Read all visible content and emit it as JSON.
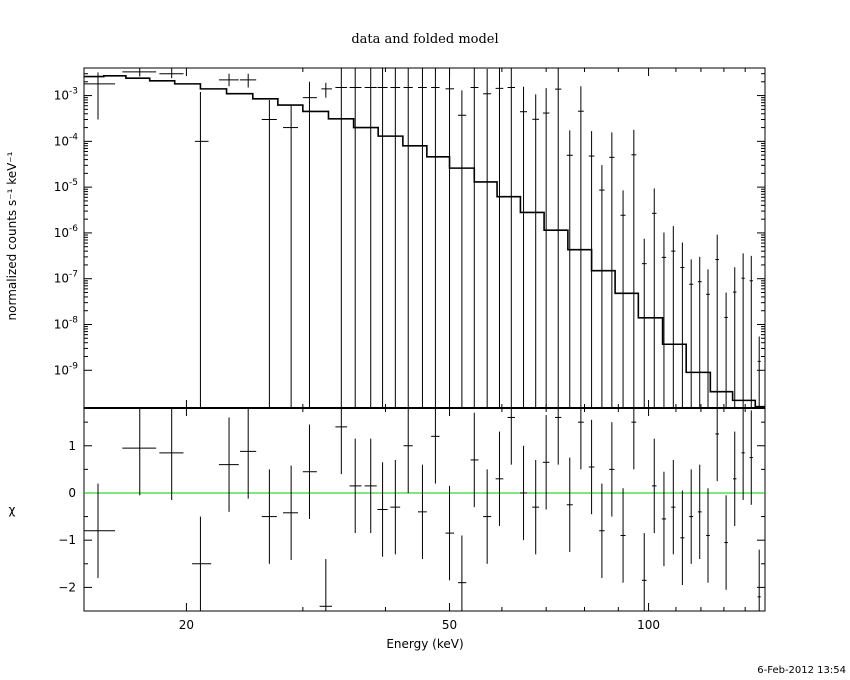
{
  "timestamp": "6-Feb-2012 13:54",
  "colors": {
    "frame": "#000000",
    "zero_line": "#00cc00",
    "background": "#ffffff"
  },
  "chart_data": [
    {
      "type": "line",
      "title": "data and folded model",
      "xlabel": "",
      "ylabel": "normalized counts s⁻¹ keV⁻¹",
      "xscale": "log",
      "yscale": "log",
      "xlim": [
        14,
        150
      ],
      "ylim": [
        1.5e-10,
        0.004
      ],
      "y_ticks": [
        {
          "value": 0.001,
          "mant": "10",
          "exp": "-3"
        },
        {
          "value": 0.0001,
          "mant": "10",
          "exp": "-4"
        },
        {
          "value": 1e-05,
          "mant": "10",
          "exp": "-5"
        },
        {
          "value": 1e-06,
          "mant": "10",
          "exp": "-6"
        },
        {
          "value": 1e-07,
          "mant": "10",
          "exp": "-7"
        },
        {
          "value": 1e-08,
          "mant": "10",
          "exp": "-8"
        },
        {
          "value": 1e-09,
          "mant": "10",
          "exp": "-9"
        }
      ],
      "series": [
        {
          "kind": "model_step",
          "x": [
            14.0,
            15.0,
            16.2,
            17.6,
            19.2,
            21.0,
            23.0,
            25.2,
            27.5,
            30.0,
            32.8,
            35.8,
            39.0,
            42.5,
            46.2,
            50.0,
            54.5,
            59.0,
            64.0,
            69.5,
            75.5,
            82.0,
            89.0,
            96.5,
            105.0,
            114.0,
            124.0,
            134.0,
            145.0,
            150.0
          ],
          "y": [
            0.0026,
            0.0027,
            0.0024,
            0.0021,
            0.0018,
            0.0014,
            0.0011,
            0.00085,
            0.00062,
            0.00045,
            0.00031,
            0.0002,
            0.00013,
            8e-05,
            4.6e-05,
            2.6e-05,
            1.3e-05,
            6.2e-06,
            2.8e-06,
            1.15e-06,
            4.3e-07,
            1.5e-07,
            4.8e-08,
            1.4e-08,
            3.7e-09,
            9e-10,
            3.4e-10,
            2.2e-10,
            1.6e-10,
            1.6e-10
          ]
        },
        {
          "kind": "data",
          "points": [
            {
              "x": 14.7,
              "xerr": [
                14.0,
                15.6
              ],
              "y": 0.0018,
              "ylo": 0.0003,
              "yhi": 0.0032
            },
            {
              "x": 17.0,
              "xerr": [
                16.0,
                18.0
              ],
              "y": 0.0033,
              "ylo": 0.0026,
              "yhi": 0.004
            },
            {
              "x": 19.0,
              "xerr": [
                18.2,
                19.8
              ],
              "y": 0.003,
              "ylo": 0.0024,
              "yhi": 0.004
            },
            {
              "x": 21.0,
              "xerr": [
                20.6,
                21.6
              ],
              "y": 0.0001,
              "ylo": null,
              "yhi": 0.0012
            },
            {
              "x": 23.2,
              "xerr": [
                22.4,
                24.0
              ],
              "y": 0.0022,
              "ylo": 0.0016,
              "yhi": 0.003
            },
            {
              "x": 24.8,
              "xerr": [
                24.1,
                25.5
              ],
              "y": 0.0022,
              "ylo": 0.0015,
              "yhi": 0.003
            },
            {
              "x": 26.7,
              "xerr": [
                26.0,
                27.4
              ],
              "y": 0.0003,
              "ylo": null,
              "yhi": 0.0008
            },
            {
              "x": 28.8,
              "xerr": [
                28.0,
                29.5
              ],
              "y": 0.0002,
              "ylo": null,
              "yhi": 0.0006
            },
            {
              "x": 30.7,
              "xerr": [
                30.0,
                31.5
              ],
              "y": 0.0009,
              "ylo": null,
              "yhi": 0.002
            },
            {
              "x": 32.5,
              "xerr": [
                32.0,
                33.2
              ],
              "y": 0.0014,
              "ylo": 0.0009,
              "yhi": 0.0019
            }
          ]
        }
      ]
    },
    {
      "type": "scatter",
      "xlabel": "Energy (keV)",
      "ylabel": "χ",
      "xscale": "log",
      "xlim": [
        14,
        150
      ],
      "ylim": [
        -2.5,
        1.8
      ],
      "x_ticks": [
        20,
        50,
        100
      ],
      "x_tick_labels": [
        "20",
        "50",
        "100"
      ],
      "y_ticks": [
        -2,
        -1,
        0,
        1
      ],
      "y_tick_labels": [
        "−2",
        "−1",
        "0",
        "1"
      ],
      "zero_line": 0,
      "points": [
        {
          "x": 14.7,
          "xerr": [
            14.0,
            15.6
          ],
          "y": -0.8,
          "yerr": 1.0
        },
        {
          "x": 17.0,
          "xerr": [
            16.0,
            18.0
          ],
          "y": 0.95,
          "yerr": 1.0
        },
        {
          "x": 19.0,
          "xerr": [
            18.2,
            19.8
          ],
          "y": 0.85,
          "yerr": 1.0
        },
        {
          "x": 21.0,
          "xerr": [
            20.4,
            21.8
          ],
          "y": -1.5,
          "yerr": 1.0
        },
        {
          "x": 23.2,
          "xerr": [
            22.4,
            24.0
          ],
          "y": 0.6,
          "yerr": 1.0
        },
        {
          "x": 24.8,
          "xerr": [
            24.1,
            25.5
          ],
          "y": 0.88,
          "yerr": 1.0
        },
        {
          "x": 26.7,
          "xerr": [
            26.0,
            27.4
          ],
          "y": -0.5,
          "yerr": 1.0
        },
        {
          "x": 28.8,
          "xerr": [
            28.0,
            29.5
          ],
          "y": -0.42,
          "yerr": 1.0
        },
        {
          "x": 30.7,
          "xerr": [
            30.0,
            31.5
          ],
          "y": 0.45,
          "yerr": 1.0
        },
        {
          "x": 32.5,
          "xerr": [
            31.8,
            33.2
          ],
          "y": -2.4,
          "yerr": 1.0
        },
        {
          "x": 34.3,
          "xerr": [
            33.6,
            35.0
          ],
          "y": 1.4,
          "yerr": 1.0
        },
        {
          "x": 36.0,
          "xerr": [
            35.3,
            36.8
          ],
          "y": 0.15,
          "yerr": 1.0
        },
        {
          "x": 38.0,
          "xerr": [
            37.2,
            38.8
          ],
          "y": 0.15,
          "yerr": 1.0
        },
        {
          "x": 39.6,
          "xerr": [
            38.9,
            40.3
          ],
          "y": -0.35,
          "yerr": 1.0
        },
        {
          "x": 41.4,
          "xerr": [
            40.7,
            42.1
          ],
          "y": -0.3,
          "yerr": 1.0
        },
        {
          "x": 43.3,
          "xerr": [
            42.6,
            44.0
          ],
          "y": 1.0,
          "yerr": 1.0
        },
        {
          "x": 45.5,
          "xerr": [
            44.8,
            46.2
          ],
          "y": -0.4,
          "yerr": 1.0
        },
        {
          "x": 47.6,
          "xerr": [
            46.9,
            48.3
          ],
          "y": 1.2,
          "yerr": 1.0
        },
        {
          "x": 50.0,
          "xerr": [
            49.3,
            50.8
          ],
          "y": -0.85,
          "yerr": 1.0
        },
        {
          "x": 52.2,
          "xerr": [
            51.5,
            53.0
          ],
          "y": -1.9,
          "yerr": 1.0
        },
        {
          "x": 54.5,
          "xerr": [
            53.8,
            55.3
          ],
          "y": 0.7,
          "yerr": 1.0
        },
        {
          "x": 57.0,
          "xerr": [
            56.2,
            57.8
          ],
          "y": -0.5,
          "yerr": 1.0
        },
        {
          "x": 59.5,
          "xerr": [
            58.7,
            60.3
          ],
          "y": 0.3,
          "yerr": 1.0
        },
        {
          "x": 62.0,
          "xerr": [
            61.2,
            62.8
          ],
          "y": 1.6,
          "yerr": 1.0
        },
        {
          "x": 64.7,
          "xerr": [
            63.9,
            65.5
          ],
          "y": 0.0,
          "yerr": 1.0
        },
        {
          "x": 67.5,
          "xerr": [
            66.7,
            68.3
          ],
          "y": -0.3,
          "yerr": 1.0
        },
        {
          "x": 70.0,
          "xerr": [
            69.2,
            70.8
          ],
          "y": 0.65,
          "yerr": 1.0
        },
        {
          "x": 73.0,
          "xerr": [
            72.2,
            73.8
          ],
          "y": 1.6,
          "yerr": 1.0
        },
        {
          "x": 76.0,
          "xerr": [
            75.2,
            76.8
          ],
          "y": -0.25,
          "yerr": 1.0
        },
        {
          "x": 79.0,
          "xerr": [
            78.2,
            79.8
          ],
          "y": 1.5,
          "yerr": 1.0
        },
        {
          "x": 82.0,
          "xerr": [
            81.2,
            82.8
          ],
          "y": 0.55,
          "yerr": 1.0
        },
        {
          "x": 85.0,
          "xerr": [
            84.2,
            85.8
          ],
          "y": -0.8,
          "yerr": 1.0
        },
        {
          "x": 88.0,
          "xerr": [
            87.2,
            88.8
          ],
          "y": 0.5,
          "yerr": 1.0
        },
        {
          "x": 91.5,
          "xerr": [
            90.7,
            92.3
          ],
          "y": -0.9,
          "yerr": 1.0
        },
        {
          "x": 95.0,
          "xerr": [
            94.2,
            95.8
          ],
          "y": 1.5,
          "yerr": 1.0
        },
        {
          "x": 98.5,
          "xerr": [
            97.7,
            99.3
          ],
          "y": -1.85,
          "yerr": 1.0
        },
        {
          "x": 102.0,
          "xerr": [
            101.2,
            102.8
          ],
          "y": 0.15,
          "yerr": 1.0
        },
        {
          "x": 105.5,
          "xerr": [
            104.7,
            106.3
          ],
          "y": -0.55,
          "yerr": 1.0
        },
        {
          "x": 109.0,
          "xerr": [
            108.2,
            109.8
          ],
          "y": -0.3,
          "yerr": 1.0
        },
        {
          "x": 112.5,
          "xerr": [
            111.7,
            113.3
          ],
          "y": -0.95,
          "yerr": 1.0
        },
        {
          "x": 116.0,
          "xerr": [
            115.2,
            116.8
          ],
          "y": -0.5,
          "yerr": 1.0
        },
        {
          "x": 119.5,
          "xerr": [
            118.7,
            120.3
          ],
          "y": -0.4,
          "yerr": 1.0
        },
        {
          "x": 123.0,
          "xerr": [
            122.2,
            123.8
          ],
          "y": -0.9,
          "yerr": 1.0
        },
        {
          "x": 127.0,
          "xerr": [
            126.2,
            127.8
          ],
          "y": 1.25,
          "yerr": 1.0
        },
        {
          "x": 131.0,
          "xerr": [
            130.2,
            131.8
          ],
          "y": -1.05,
          "yerr": 1.0
        },
        {
          "x": 135.0,
          "xerr": [
            134.2,
            135.8
          ],
          "y": 0.3,
          "yerr": 1.0
        },
        {
          "x": 139.0,
          "xerr": [
            138.2,
            139.8
          ],
          "y": 0.85,
          "yerr": 1.0
        },
        {
          "x": 143.0,
          "xerr": [
            142.2,
            143.8
          ],
          "y": 0.75,
          "yerr": 1.0
        },
        {
          "x": 147.0,
          "xerr": [
            146.2,
            147.8
          ],
          "y": -2.2,
          "yerr": 1.0
        }
      ]
    }
  ]
}
